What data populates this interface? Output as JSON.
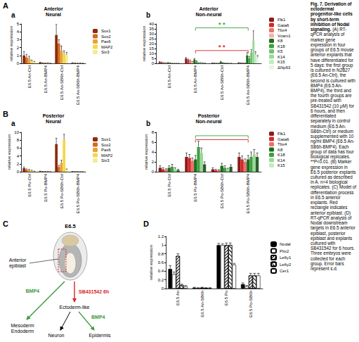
{
  "panel_labels": [
    "A",
    "B",
    "C",
    "D"
  ],
  "chart_data": [
    {
      "type": "bar",
      "sub_label": "a",
      "title": "Anterior Neural",
      "ylabel": "relative expression",
      "categories": [
        "E6.5 An-Ctrl",
        "E6.5 An-BMP4",
        "E6.5 An-SB6h-Ctrl",
        "E6.5 An-SB6h-BMP4"
      ],
      "ylim": [
        0,
        5
      ],
      "yticks": [
        0,
        1,
        2,
        3,
        4,
        5
      ],
      "grid": false,
      "legend": "right",
      "series": [
        {
          "name": "Sox1",
          "color": "#8b2c0c",
          "values": [
            1.0,
            0.1,
            3.6,
            0.05
          ],
          "errors": [
            0.5,
            0.05,
            1.4,
            0.03
          ]
        },
        {
          "name": "Sox2",
          "color": "#d2691e",
          "values": [
            0.75,
            0.05,
            2.5,
            0.03
          ],
          "errors": [
            0.4,
            0.03,
            0.5,
            0.02
          ]
        },
        {
          "name": "Pax6",
          "color": "#e8a33a",
          "values": [
            0.6,
            0.03,
            1.6,
            0.02
          ],
          "errors": [
            0.3,
            0.02,
            0.6,
            0.01
          ]
        },
        {
          "name": "MAP2",
          "color": "#f5d742",
          "values": [
            0.3,
            0.05,
            1.2,
            0.03
          ],
          "errors": [
            0.1,
            0.03,
            0.4,
            0.02
          ]
        },
        {
          "name": "Six3",
          "color": "#f3eb9a",
          "values": [
            0.15,
            0.02,
            1.1,
            0.02
          ],
          "errors": [
            0.1,
            0.01,
            0.3,
            0.01
          ]
        }
      ]
    },
    {
      "type": "bar",
      "sub_label": "b",
      "title": "Anterior Non-neural",
      "ylabel": "relative expression",
      "categories": [
        "E6.5 An-Ctrl",
        "E6.5 An-BMP4",
        "E6.5 An-SB6h-Ctrl",
        "E6.5 An-SB6h-BMP4"
      ],
      "ylim": [
        0,
        40
      ],
      "yticks": [
        0,
        5,
        10,
        15,
        20,
        25,
        30,
        35,
        40
      ],
      "grid": false,
      "legend": "right",
      "series": [
        {
          "name": "Flk1",
          "color": "#8b1a1a",
          "values": [
            1.2,
            5.0,
            0.3,
            0.5
          ],
          "errors": [
            0.6,
            1.0,
            0.2,
            0.3
          ]
        },
        {
          "name": "Gata6",
          "color": "#d62728",
          "values": [
            0.8,
            3.5,
            0.2,
            0.3
          ],
          "errors": [
            0.5,
            0.8,
            0.1,
            0.2
          ]
        },
        {
          "name": "Tbx4",
          "color": "#e57373",
          "values": [
            0.5,
            2.5,
            0.1,
            0.3
          ],
          "errors": [
            0.3,
            0.8,
            0.1,
            0.1
          ]
        },
        {
          "name": "Vcam1",
          "color": "#f4b0b0",
          "values": [
            0.4,
            1.5,
            0.1,
            0.2
          ],
          "errors": [
            0.2,
            0.4,
            0.1,
            0.1
          ]
        },
        {
          "name": "K8",
          "color": "#1b6e1b",
          "values": [
            0.6,
            4.0,
            1.5,
            8.0
          ],
          "errors": [
            0.3,
            1.0,
            0.6,
            3.0
          ]
        },
        {
          "name": "K18",
          "color": "#3f9f3f",
          "values": [
            0.3,
            2.0,
            0.5,
            5.0
          ],
          "errors": [
            0.2,
            0.5,
            0.3,
            2.0
          ]
        },
        {
          "name": "K5",
          "color": "#6cc46c",
          "values": [
            0.1,
            0.5,
            0.2,
            11.0
          ],
          "errors": [
            0.05,
            0.2,
            0.1,
            3.0
          ]
        },
        {
          "name": "K14",
          "color": "#98d998",
          "values": [
            0.1,
            0.6,
            0.2,
            23.0
          ],
          "errors": [
            0.05,
            0.3,
            0.1,
            10.0
          ]
        },
        {
          "name": "K15",
          "color": "#c2ebc2",
          "values": [
            0.1,
            0.4,
            0.1,
            9.0
          ],
          "errors": [
            0.05,
            0.2,
            0.05,
            3.0
          ]
        },
        {
          "name": "ΔNp63",
          "color": "#e4f6e0",
          "values": [
            0.1,
            0.3,
            0.1,
            6.0
          ],
          "errors": [
            0.05,
            0.1,
            0.05,
            2.0
          ]
        }
      ],
      "annotations": [
        {
          "text": "* *",
          "color": "#d62728",
          "from": "E6.5 An-BMP4",
          "to": "E6.5 An-SB6h-BMP4",
          "y": 13
        },
        {
          "text": "* *",
          "color": "#3f9f3f",
          "from": "E6.5 An-BMP4",
          "to": "E6.5 An-SB6h-BMP4",
          "y": 36
        }
      ]
    },
    {
      "type": "bar",
      "sub_label": "a",
      "title": "Posterior Neural",
      "ylabel": "relative expression",
      "categories": [
        "E6.5 Po-Ctrl",
        "E6.5 Po-BMP4",
        "E6.5 Po-SB6h-Ctrl",
        "E6.5 Po-SB6h-BMP4"
      ],
      "ylim": [
        0,
        10
      ],
      "yticks": [
        0,
        2,
        4,
        6,
        8,
        10
      ],
      "grid": false,
      "legend": "right",
      "series": [
        {
          "name": "Sox1",
          "color": "#8b2c0c",
          "values": [
            0.9,
            0.1,
            7.0,
            0.05
          ],
          "errors": [
            0.3,
            0.05,
            1.5,
            0.03
          ]
        },
        {
          "name": "Sox2",
          "color": "#d2691e",
          "values": [
            0.5,
            0.05,
            1.2,
            0.03
          ],
          "errors": [
            0.2,
            0.03,
            0.4,
            0.02
          ]
        },
        {
          "name": "Pax6",
          "color": "#e8a33a",
          "values": [
            0.4,
            0.05,
            2.2,
            0.03
          ],
          "errors": [
            0.2,
            0.03,
            0.7,
            0.02
          ]
        },
        {
          "name": "MAP2",
          "color": "#f5d742",
          "values": [
            0.3,
            0.05,
            8.0,
            0.03
          ],
          "errors": [
            0.1,
            0.03,
            1.5,
            0.02
          ]
        },
        {
          "name": "Six3",
          "color": "#f3eb9a",
          "values": [
            0.1,
            0.02,
            0.5,
            0.02
          ],
          "errors": [
            0.05,
            0.01,
            0.2,
            0.01
          ]
        }
      ]
    },
    {
      "type": "bar",
      "sub_label": "b",
      "title": "Posterior Non-neural",
      "ylabel": "relative expression",
      "categories": [
        "E6.5 Po-Ctrl",
        "E6.5 Po-BMP4",
        "E6.5 Po-SB6h-Ctrl",
        "E6.5 Po-SB6h-BMP4"
      ],
      "ylim": [
        0,
        8
      ],
      "yticks": [
        0,
        2,
        4,
        6,
        8
      ],
      "grid": false,
      "legend": "right",
      "series": [
        {
          "name": "Flk1",
          "color": "#8b1a1a",
          "values": [
            0.8,
            3.0,
            0.5,
            3.0
          ],
          "errors": [
            0.4,
            0.8,
            0.3,
            0.8
          ]
        },
        {
          "name": "Gata6",
          "color": "#d62728",
          "values": [
            0.5,
            2.8,
            0.3,
            2.5
          ],
          "errors": [
            0.3,
            0.7,
            0.2,
            0.7
          ]
        },
        {
          "name": "Tbx4",
          "color": "#e57373",
          "values": [
            0.4,
            2.2,
            0.3,
            2.0
          ],
          "errors": [
            0.2,
            0.6,
            0.1,
            0.6
          ]
        },
        {
          "name": "K8",
          "color": "#1b6e1b",
          "values": [
            0.8,
            2.5,
            1.2,
            2.5
          ],
          "errors": [
            0.4,
            0.8,
            0.5,
            0.8
          ]
        },
        {
          "name": "K18",
          "color": "#3f9f3f",
          "values": [
            1.0,
            5.0,
            0.8,
            3.0
          ],
          "errors": [
            0.5,
            1.2,
            0.4,
            1.0
          ]
        },
        {
          "name": "K14",
          "color": "#98d998",
          "values": [
            0.5,
            3.8,
            0.5,
            3.5
          ],
          "errors": [
            0.3,
            1.0,
            0.2,
            1.0
          ]
        },
        {
          "name": "K15",
          "color": "#2e5e2e",
          "values": [
            0.3,
            1.5,
            1.0,
            3.0
          ],
          "errors": [
            0.2,
            0.5,
            0.4,
            0.8
          ]
        }
      ],
      "annotations": [
        {
          "color": "#d62728",
          "from": "E6.5 Po-BMP4",
          "to": "E6.5 Po-SB6h-BMP4",
          "y": 6.5
        },
        {
          "color": "#3f9f3f",
          "from": "E6.5 Po-BMP4",
          "to": "E6.5 Po-SB6h-BMP4",
          "y": 7.3
        }
      ]
    },
    {
      "type": "bar",
      "ylabel": "relative expression",
      "categories": [
        "E6.5 An",
        "E6.5 An-SB6h",
        "E6.5 Po",
        "E6.5 Po-SB6h"
      ],
      "ylim": [
        0,
        1.2
      ],
      "yticks": [
        0,
        0.2,
        0.4,
        0.6,
        0.8,
        1,
        1.2
      ],
      "grid": false,
      "legend": "right",
      "series": [
        {
          "name": "Nodal",
          "color": "#000000",
          "values": [
            0.45,
            0.02,
            1.0,
            0.1
          ],
          "errors": [
            0.08,
            0.01,
            0.04,
            0.03
          ]
        },
        {
          "name": "Pitx2",
          "color": "#ffffff",
          "values": [
            0.33,
            0.01,
            1.0,
            0.05
          ],
          "errors": [
            0.05,
            0.01,
            0.03,
            0.02
          ]
        },
        {
          "name": "Lefty1",
          "color": "#ffffff",
          "values": [
            0.75,
            0.02,
            1.0,
            0.3
          ],
          "errors": [
            0.05,
            0.01,
            0.05,
            0.05
          ]
        },
        {
          "name": "Lefty2",
          "color": "#ffffff",
          "values": [
            0.08,
            0.01,
            1.0,
            0.3
          ],
          "errors": [
            0.02,
            0.01,
            0.05,
            0.05
          ]
        },
        {
          "name": "Cer1",
          "color": "#ffffff",
          "values": [
            0.05,
            0.01,
            0.55,
            0.3
          ],
          "errors": [
            0.02,
            0.01,
            0.03,
            0.05
          ]
        }
      ]
    }
  ],
  "diagram": {
    "stage": "E6.5",
    "region": "Anterior epiblast",
    "treatment": "SB431542 6h",
    "intermediate": "Ectoderm-like",
    "signal_left": "BMP4",
    "signal_right": "BMP4",
    "fate_left": "Mesoderm Endoderm",
    "fate_neuron": "Neuron",
    "fate_epidermis": "Epidermis"
  },
  "caption": {
    "title": "Fig. 7. Derivation of ectodermal progenitor-like cells by short-term inhibition of Nodal signaling.",
    "body": "(A) RT-qPCR analysis of marker gene expression in four groups of E6.5 mouse anterior explants that have differentiated for 5 days: the first group is cultured in N2B27 (E6.5 An-Ctrl), the second is cultured with BMP4 (E6.5 An-BMP4), the third and the fourth groups are pre-treated with SB431542 (10 μM) for 6 hours, and then differentiated separately in control medium (E6.5 An-SB6h-Ctrl) or medium supplemented with 10 ng/ml BMP4 (E6.5 An-SB6h-BMP4). Each group of data has four biological replicates. **P<0.01. (B) Marker gene expression in E6.5 posterior explants cultured as described in A. n=4 biological replicates. (C) Model of differentiation process in E6.5 anterior explants. Red rectangle indicates anterior epiblast. (D) RT-qPCR analysis of Nodal downstream targets in E6.5 anterior epiblast, posterior epiblast and explants cultured with SB431542 for 6 hours. Three embryos were collected for each group. Error bars represent s.d."
  }
}
